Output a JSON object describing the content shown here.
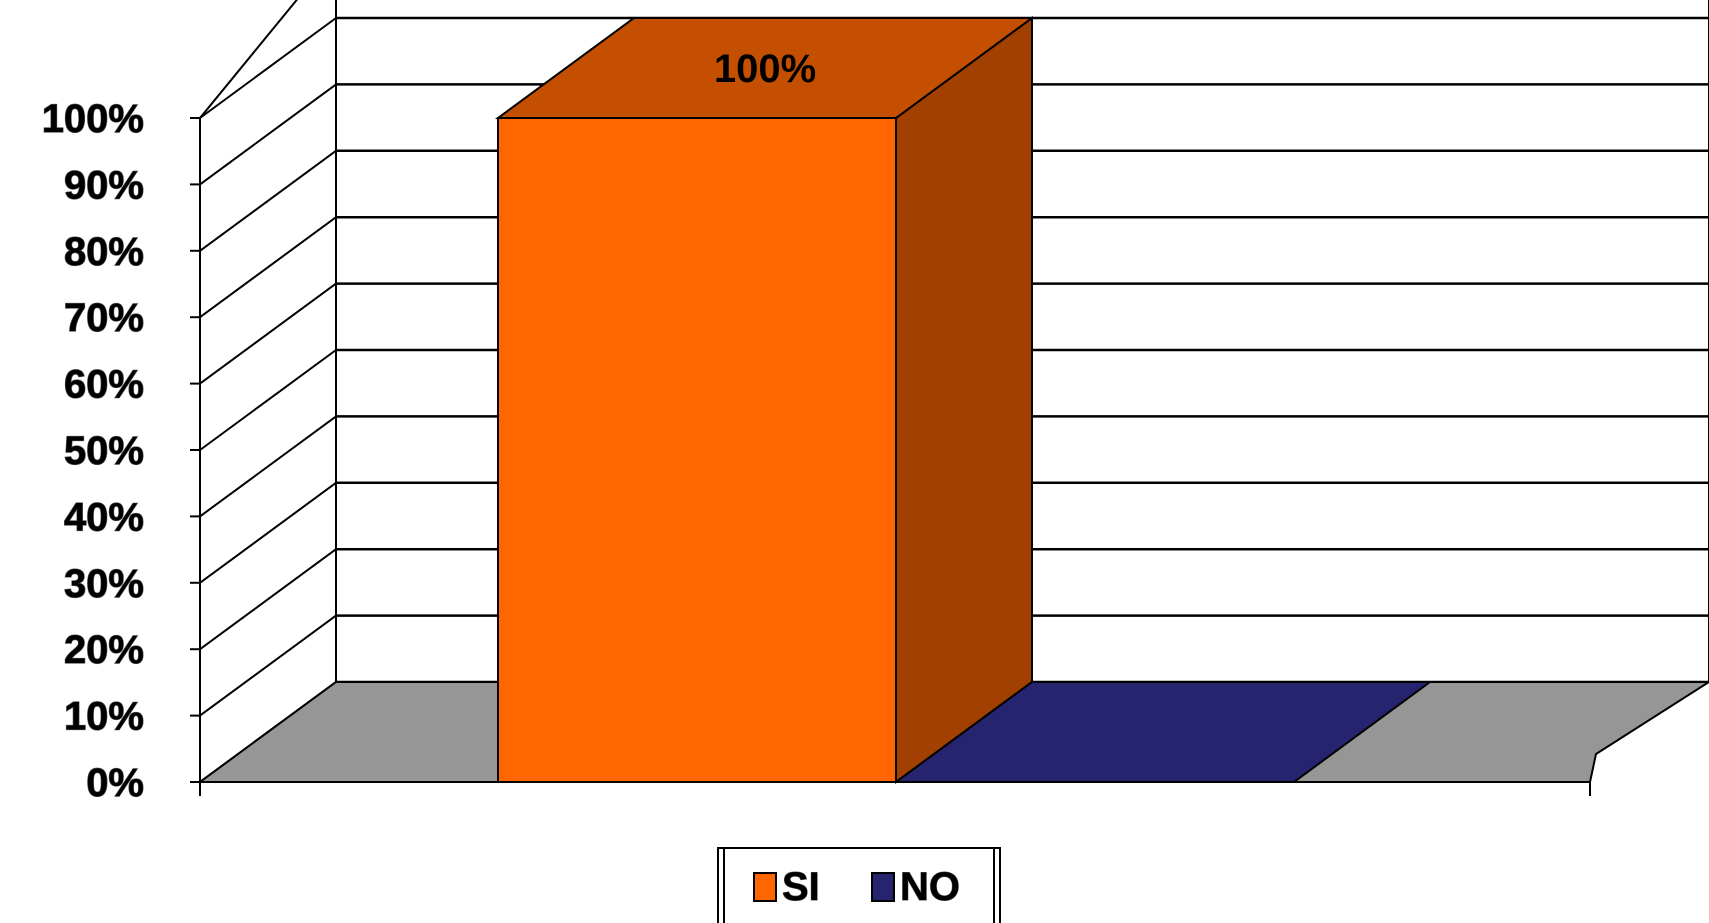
{
  "chart_data": {
    "type": "bar",
    "categories": [
      ""
    ],
    "series": [
      {
        "name": "SI",
        "values": [
          100
        ],
        "color": "#ff6600",
        "label": "100%"
      },
      {
        "name": "NO",
        "values": [
          0
        ],
        "color": "#26246e"
      }
    ],
    "y_ticks": [
      "0%",
      "10%",
      "20%",
      "30%",
      "40%",
      "50%",
      "60%",
      "70%",
      "80%",
      "90%",
      "100%"
    ],
    "ylim": [
      0,
      100
    ],
    "grid": true,
    "style": "3d",
    "legend_position": "bottom-center"
  }
}
